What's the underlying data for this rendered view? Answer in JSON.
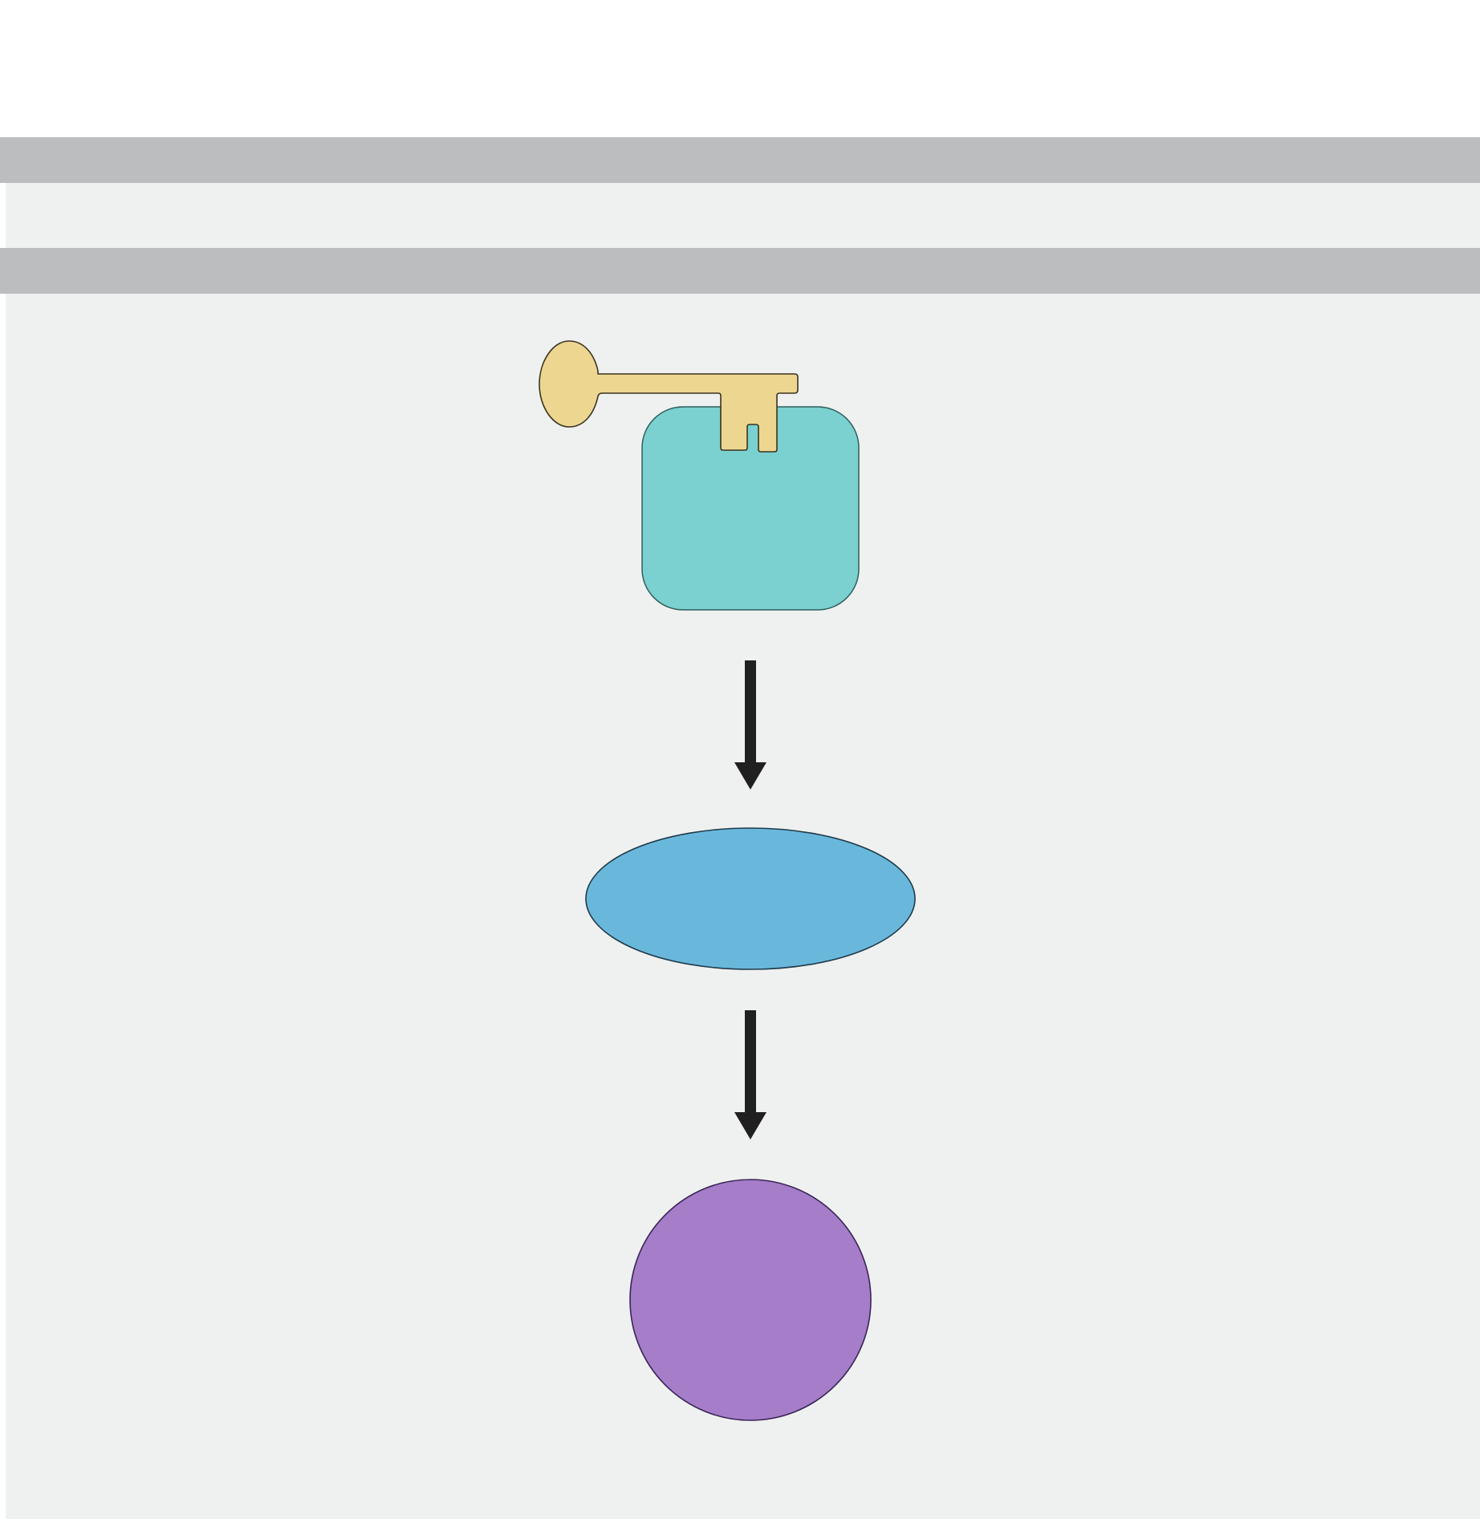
{
  "diagram": {
    "colors": {
      "page_background": "#ffffff",
      "membrane_band": "#bcbdbf",
      "compartment_fill": "#eff1f0",
      "receptor_fill": "#7ad1cf",
      "receptor_stroke": "#2f5f5d",
      "key_fill": "#edd690",
      "key_stroke": "#3a3320",
      "intermediate_fill": "#69b8dc",
      "intermediate_stroke": "#1f3a4a",
      "output_fill": "#a57dc8",
      "output_stroke": "#3a2458",
      "arrow": "#202020"
    },
    "nodes": [
      {
        "id": "receptor",
        "shape": "rounded-square",
        "icon": "lock-icon"
      },
      {
        "id": "ligand-key",
        "shape": "key",
        "icon": "key-icon"
      },
      {
        "id": "intermediate",
        "shape": "ellipse"
      },
      {
        "id": "output",
        "shape": "circle"
      }
    ],
    "edges": [
      {
        "from": "receptor",
        "to": "intermediate"
      },
      {
        "from": "intermediate",
        "to": "output"
      }
    ]
  }
}
